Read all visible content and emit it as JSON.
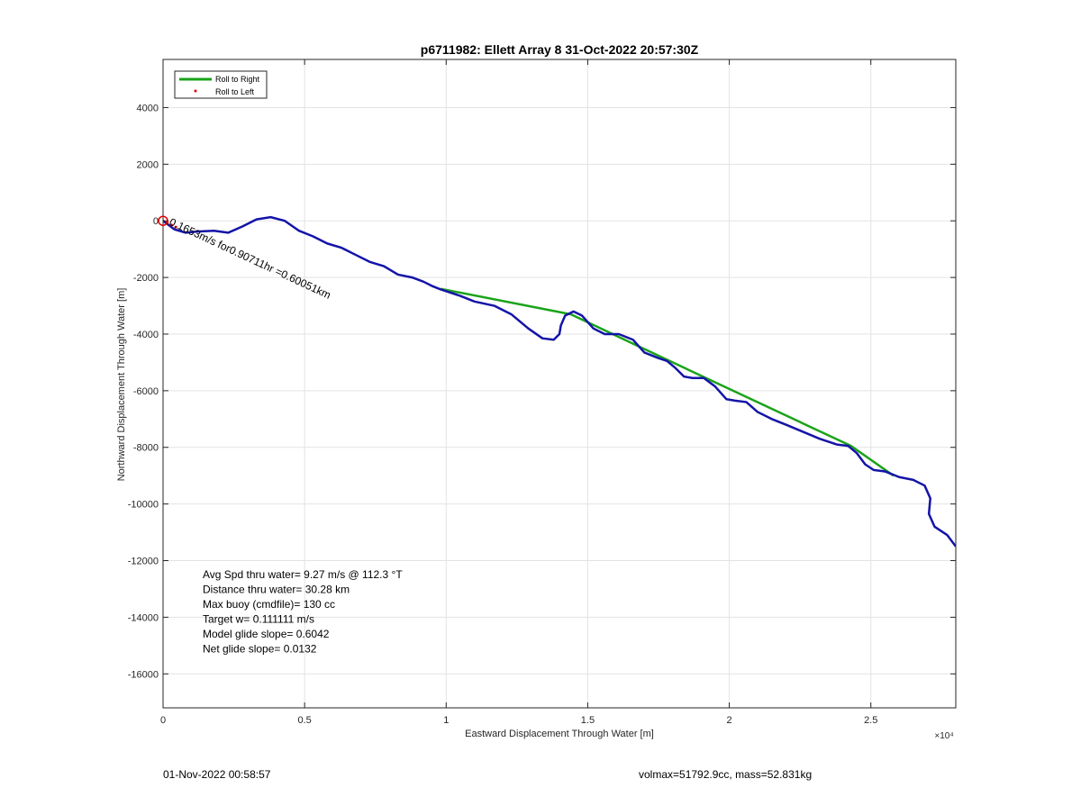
{
  "footer": {
    "left": "01-Nov-2022 00:58:57",
    "right": "volmax=51792.9cc, mass=52.831kg"
  },
  "colors": {
    "roll_right": "#1aa31a",
    "roll_left": "#e00000",
    "track": "#1414a8",
    "grid": "#e3e3e3",
    "axis": "#262626"
  },
  "chart_data": {
    "type": "line",
    "title": "p6711982: Ellett Array 8 31-Oct-2022 20:57:30Z",
    "xlabel": "Eastward Displacement Through Water [m]",
    "ylabel": "Northward Displacement Through Water [m]",
    "x_exponent_label": "×10⁴",
    "xlim": [
      0,
      28000
    ],
    "ylim": [
      -17200,
      5700
    ],
    "grid": true,
    "legend_position": "top-left",
    "x_ticks": [
      0,
      5000,
      10000,
      15000,
      20000,
      25000
    ],
    "x_tick_labels": [
      "0",
      "0.5",
      "1",
      "1.5",
      "2",
      "2.5"
    ],
    "y_ticks": [
      4000,
      2000,
      0,
      -2000,
      -4000,
      -6000,
      -8000,
      -10000,
      -12000,
      -14000,
      -16000
    ],
    "y_tick_labels": [
      "4000",
      "2000",
      "0",
      "-2000",
      "-4000",
      "-6000",
      "-8000",
      "-10000",
      "-12000",
      "-14000",
      "-16000"
    ],
    "legend": [
      "Roll to Right",
      "Roll to Left"
    ],
    "series": [
      {
        "name": "Roll to Right",
        "style": "line",
        "points": [
          [
            9800,
            -2400
          ],
          [
            14400,
            -3300
          ],
          [
            18000,
            -5000
          ],
          [
            24300,
            -7950
          ],
          [
            25800,
            -9000
          ]
        ]
      },
      {
        "name": "Roll to Left",
        "style": "points",
        "points": [
          [
            0,
            0
          ],
          [
            150,
            -50
          ],
          [
            300,
            -150
          ],
          [
            450,
            -220
          ]
        ]
      },
      {
        "name": "",
        "style": "line",
        "points": [
          [
            0,
            0
          ],
          [
            400,
            -300
          ],
          [
            800,
            -420
          ],
          [
            1200,
            -380
          ],
          [
            1800,
            -350
          ],
          [
            2300,
            -420
          ],
          [
            2800,
            -200
          ],
          [
            3300,
            50
          ],
          [
            3800,
            130
          ],
          [
            4300,
            0
          ],
          [
            4800,
            -350
          ],
          [
            5300,
            -550
          ],
          [
            5800,
            -800
          ],
          [
            6300,
            -950
          ],
          [
            6800,
            -1200
          ],
          [
            7300,
            -1450
          ],
          [
            7800,
            -1600
          ],
          [
            8300,
            -1900
          ],
          [
            8800,
            -2000
          ],
          [
            9200,
            -2150
          ],
          [
            9500,
            -2300
          ],
          [
            9800,
            -2420
          ],
          [
            10500,
            -2650
          ],
          [
            11000,
            -2850
          ],
          [
            11700,
            -3000
          ],
          [
            12300,
            -3300
          ],
          [
            12900,
            -3800
          ],
          [
            13400,
            -4150
          ],
          [
            13800,
            -4200
          ],
          [
            14000,
            -4000
          ],
          [
            14050,
            -3700
          ],
          [
            14200,
            -3350
          ],
          [
            14500,
            -3200
          ],
          [
            14800,
            -3350
          ],
          [
            15200,
            -3800
          ],
          [
            15600,
            -4000
          ],
          [
            16100,
            -4000
          ],
          [
            16600,
            -4200
          ],
          [
            17000,
            -4650
          ],
          [
            17500,
            -4850
          ],
          [
            17800,
            -4950
          ],
          [
            18100,
            -5200
          ],
          [
            18400,
            -5500
          ],
          [
            18700,
            -5550
          ],
          [
            19100,
            -5550
          ],
          [
            19500,
            -5850
          ],
          [
            19900,
            -6300
          ],
          [
            20200,
            -6350
          ],
          [
            20600,
            -6400
          ],
          [
            21000,
            -6750
          ],
          [
            21500,
            -7000
          ],
          [
            22000,
            -7200
          ],
          [
            22600,
            -7450
          ],
          [
            23200,
            -7700
          ],
          [
            23800,
            -7900
          ],
          [
            24200,
            -7950
          ],
          [
            24500,
            -8200
          ],
          [
            24800,
            -8600
          ],
          [
            25100,
            -8800
          ],
          [
            25500,
            -8850
          ],
          [
            26000,
            -9050
          ],
          [
            26500,
            -9150
          ],
          [
            26900,
            -9350
          ],
          [
            27100,
            -9800
          ],
          [
            27050,
            -10350
          ],
          [
            27250,
            -10800
          ],
          [
            27700,
            -11100
          ],
          [
            28000,
            -11500
          ]
        ]
      }
    ],
    "annotation_drift": "0.1653m/s for0.90711hr =0.60051km",
    "stats": [
      "Avg Spd thru water=  9.27 m/s @ 112.3 °T",
      "Distance thru water= 30.28 km",
      "Max buoy (cmdfile)= 130 cc",
      "Target w= 0.111111 m/s",
      "Model glide slope= 0.6042",
      "Net glide slope= 0.0132"
    ]
  }
}
